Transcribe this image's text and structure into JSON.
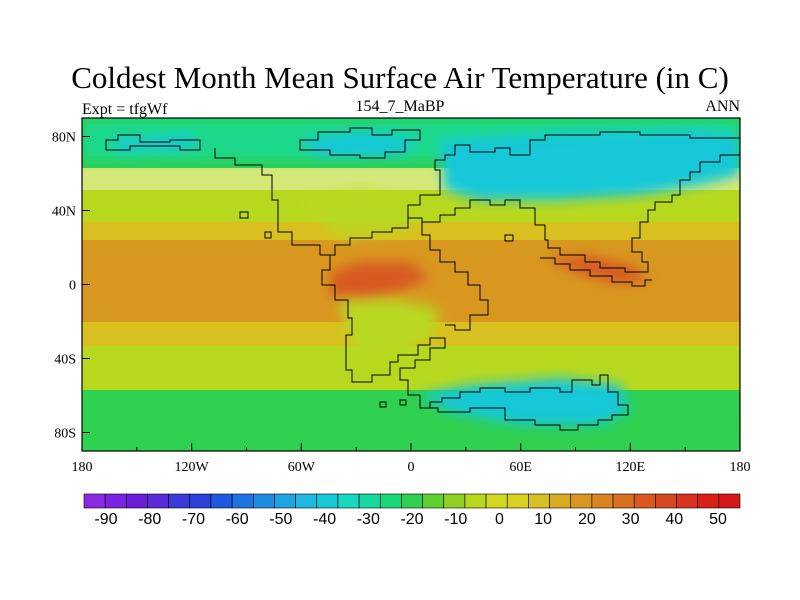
{
  "header": {
    "title": "Coldest Month Mean Surface Air Temperature (in C)",
    "left_label": "Expt = tfgWf",
    "center_label": "154_7_MaBP",
    "right_label": "ANN"
  },
  "axes": {
    "x_ticks": [
      "180",
      "120W",
      "60W",
      "0",
      "60E",
      "120E",
      "180"
    ],
    "y_ticks": [
      "80N",
      "40N",
      "0",
      "40S",
      "80S"
    ]
  },
  "colorbar": {
    "labels": [
      "-90",
      "-80",
      "-70",
      "-60",
      "-50",
      "-40",
      "-30",
      "-20",
      "-10",
      "0",
      "10",
      "20",
      "30",
      "40",
      "50"
    ],
    "colors": [
      "#8a2be2",
      "#7a24e0",
      "#6a1ed8",
      "#5a2ad8",
      "#3a3ad8",
      "#2a40d8",
      "#1e5ae0",
      "#1e74e0",
      "#1e8ce0",
      "#1ea4e0",
      "#1eb8e0",
      "#18c8d8",
      "#18d8c0",
      "#18d8a0",
      "#18d878",
      "#30d050",
      "#60d030",
      "#90d020",
      "#b8d820",
      "#d0d820",
      "#d8d020",
      "#d8c020",
      "#d8ac20",
      "#d89820",
      "#d88420",
      "#d87020",
      "#d85a20",
      "#d84820",
      "#d83420",
      "#d82018",
      "#d81818"
    ]
  },
  "field": {
    "polar_north": "#1eb8e0",
    "subpolar": "#30d050",
    "temperate": "#b8d820",
    "subtropic": "#d8c020",
    "tropic": "#d89820",
    "hot": "#d85a20",
    "cold_land": "#18c8d8",
    "cool_land": "#18d890"
  }
}
